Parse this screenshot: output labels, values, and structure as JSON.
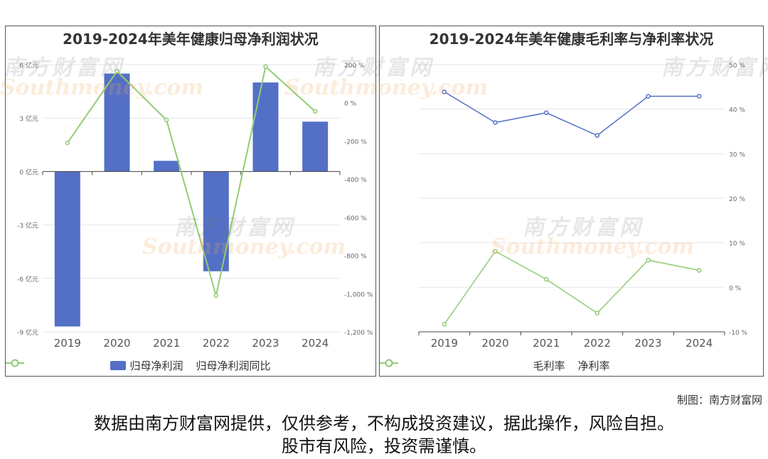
{
  "chart_data": [
    {
      "type": "bar",
      "title": "2019-2024年美年健康归母净利润状况",
      "categories": [
        "2019",
        "2020",
        "2021",
        "2022",
        "2023",
        "2024"
      ],
      "ylim": [
        -9,
        6
      ],
      "y_ticks": [
        "6 亿元",
        "3 亿元",
        "0 亿元",
        "-3 亿元",
        "-6 亿元",
        "-9 亿元"
      ],
      "y2lim": [
        -1200,
        200
      ],
      "y2_ticks": [
        "200 %",
        "0 %",
        "-200 %",
        "-400 %",
        "-600 %",
        "-800 %",
        "-1,000 %",
        "-1,200 %"
      ],
      "grid": true,
      "legend_position": "bottom",
      "series": [
        {
          "name": "归母净利润",
          "kind": "bar",
          "axis": "left",
          "color": "#5470c6",
          "values": [
            -8.7,
            5.5,
            0.6,
            -5.6,
            5.0,
            2.8
          ]
        },
        {
          "name": "归母净利润同比",
          "kind": "line",
          "axis": "right",
          "color": "#91cc75",
          "values": [
            -210,
            165,
            -90,
            -1010,
            190,
            -45
          ]
        }
      ]
    },
    {
      "type": "line",
      "title": "2019-2024年美年健康毛利率与净利率状况",
      "categories": [
        "2019",
        "2020",
        "2021",
        "2022",
        "2023",
        "2024"
      ],
      "ylim": [
        -10,
        50
      ],
      "y_ticks": [
        "50 %",
        "40 %",
        "30 %",
        "20 %",
        "10 %",
        "0 %",
        "-10 %"
      ],
      "grid": true,
      "legend_position": "bottom",
      "series": [
        {
          "name": "毛利率",
          "color": "#5470c6",
          "values": [
            43.9,
            37.0,
            39.2,
            34.1,
            42.9,
            42.9
          ]
        },
        {
          "name": "净利率",
          "color": "#91cc75",
          "values": [
            -8.3,
            8.1,
            1.8,
            -5.8,
            6.1,
            3.8
          ]
        }
      ]
    }
  ],
  "watermark": {
    "cn": "南方财富网",
    "en": "Southmoney.com"
  },
  "credit": "制图：南方财富网",
  "disclaimer": {
    "line1": "数据由南方财富网提供，仅供参考，不构成投资建议，据此操作，风险自担。",
    "line2": "股市有风险，投资需谨慎。"
  }
}
